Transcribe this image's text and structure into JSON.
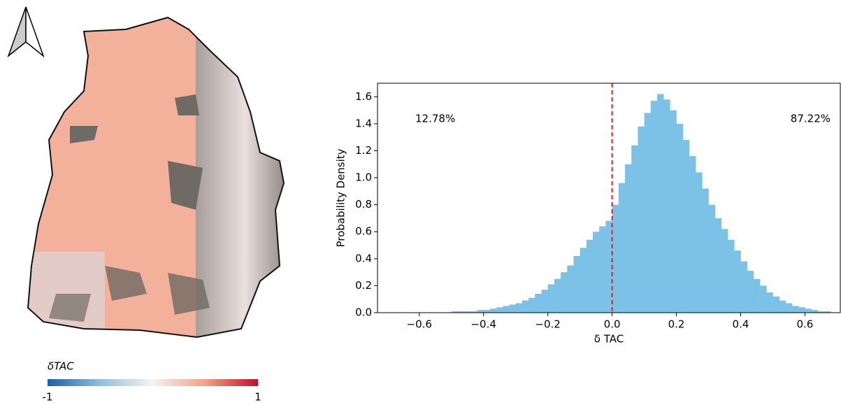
{
  "map": {
    "colorbar": {
      "title": "δTAC",
      "min": -1,
      "max": 1
    }
  },
  "chart_data": {
    "type": "histogram",
    "xlabel": "δ TAC",
    "ylabel": "Probability Density",
    "annotations": [
      "12.78%",
      "87.22%"
    ],
    "color": "#7bc2e6",
    "vline": 0,
    "vline_color": "#e02020",
    "xlim": [
      -0.73,
      0.71
    ],
    "ylim": [
      0,
      1.7
    ],
    "xticks": [
      {
        "value": -0.6,
        "label": "−0.6"
      },
      {
        "value": -0.4,
        "label": "−0.4"
      },
      {
        "value": -0.2,
        "label": "−0.2"
      },
      {
        "value": 0,
        "label": "0.0"
      },
      0.2,
      0.4,
      0.6
    ],
    "yticks": [
      {
        "value": 0,
        "label": "0.0"
      },
      0.2,
      0.4,
      0.6,
      0.8,
      {
        "value": 1,
        "label": "1.0"
      },
      1.2,
      1.4,
      1.6
    ],
    "bins": [
      -0.6,
      -0.58,
      -0.56,
      -0.54,
      -0.52,
      -0.5,
      -0.48,
      -0.46,
      -0.44,
      -0.42,
      -0.4,
      -0.38,
      -0.36,
      -0.34,
      -0.32,
      -0.3,
      -0.28,
      -0.26,
      -0.24,
      -0.22,
      -0.2,
      -0.18,
      -0.16,
      -0.14,
      -0.12,
      -0.1,
      -0.08,
      -0.06,
      -0.04,
      -0.02,
      0,
      0.02,
      0.04,
      0.06,
      0.08,
      0.1,
      0.12,
      0.14,
      0.16,
      0.18,
      0.2,
      0.22,
      0.24,
      0.26,
      0.28,
      0.3,
      0.32,
      0.34,
      0.36,
      0.38,
      0.4,
      0.42,
      0.44,
      0.46,
      0.48,
      0.5,
      0.52,
      0.54,
      0.56,
      0.58,
      0.6,
      0.62,
      0.64,
      0.66,
      0.68,
      0.7
    ],
    "values": [
      0,
      0,
      0,
      0,
      0,
      0.01,
      0.01,
      0.01,
      0.01,
      0.02,
      0.02,
      0.03,
      0.04,
      0.05,
      0.06,
      0.07,
      0.09,
      0.11,
      0.14,
      0.17,
      0.21,
      0.25,
      0.3,
      0.35,
      0.42,
      0.48,
      0.54,
      0.6,
      0.64,
      0.68,
      0.8,
      0.96,
      1.1,
      1.24,
      1.38,
      1.48,
      1.57,
      1.62,
      1.58,
      1.5,
      1.4,
      1.28,
      1.16,
      1.04,
      0.92,
      0.8,
      0.7,
      0.62,
      0.54,
      0.46,
      0.38,
      0.31,
      0.25,
      0.2,
      0.15,
      0.12,
      0.09,
      0.07,
      0.05,
      0.04,
      0.03,
      0.02,
      0.01,
      0.01,
      0
    ]
  }
}
